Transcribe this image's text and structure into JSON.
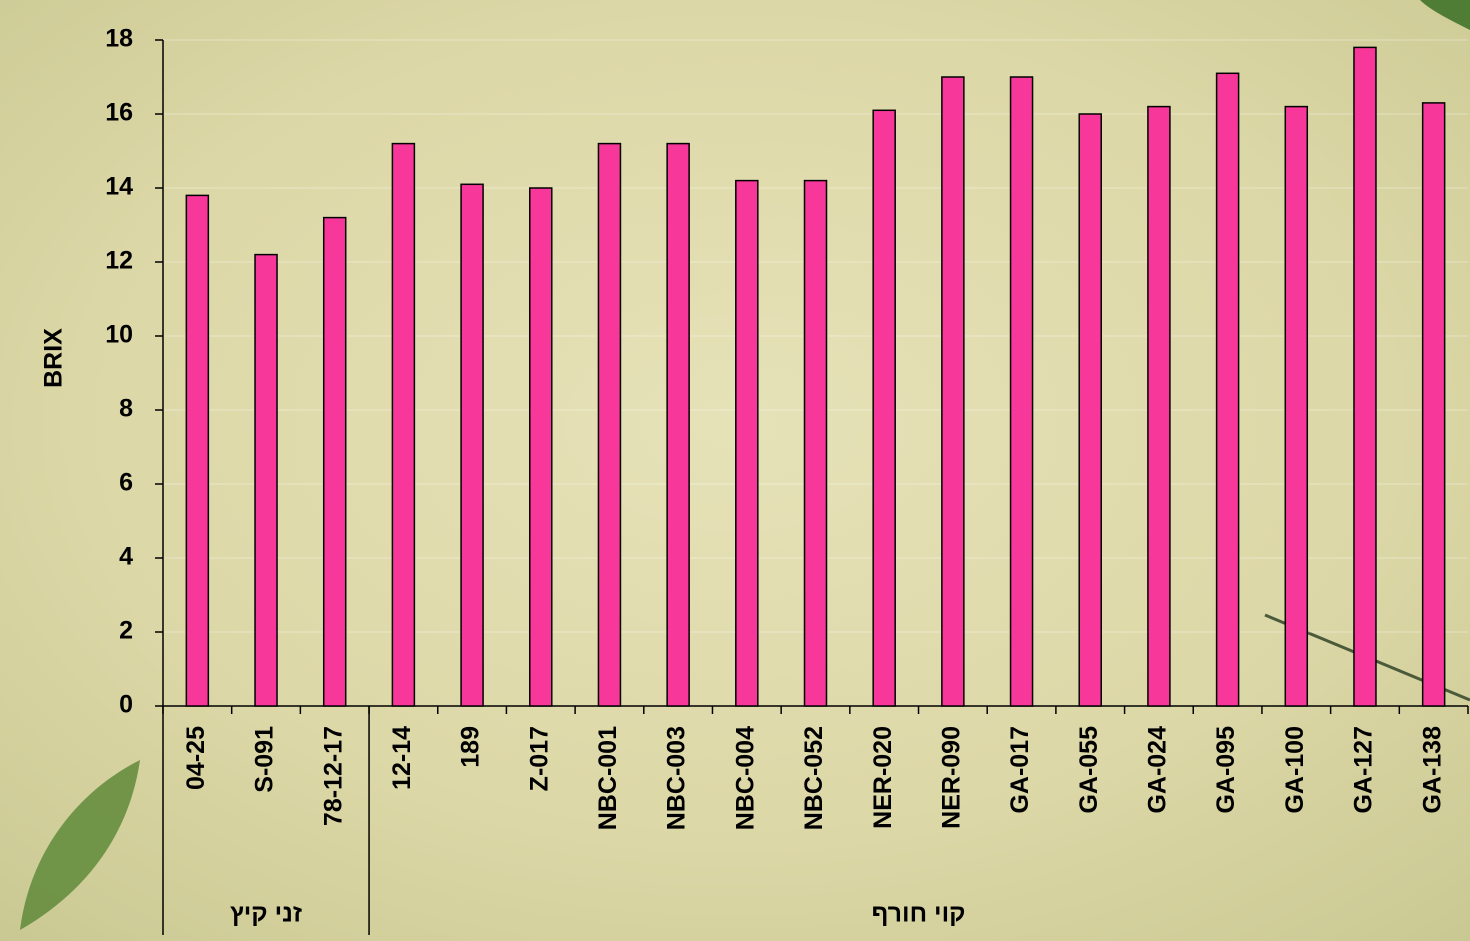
{
  "chart_data": {
    "type": "bar",
    "ylabel": "BRIX",
    "groups": [
      {
        "name": "זני קיץ",
        "categories": [
          "04-25",
          "S-091",
          "78-12-17"
        ]
      },
      {
        "name": "קוי חורף",
        "categories": [
          "12-14",
          "189",
          "Z-017",
          "NBC-001",
          "NBC-003",
          "NBC-004",
          "NBC-052",
          "NER-020",
          "NER-090",
          "GA-017",
          "GA-055",
          "GA-024",
          "GA-095",
          "GA-100",
          "GA-127",
          "GA-138"
        ]
      }
    ],
    "values": [
      13.8,
      12.2,
      13.2,
      15.2,
      14.1,
      14.0,
      15.2,
      15.2,
      14.2,
      14.2,
      16.1,
      17.0,
      17.0,
      16.0,
      16.2,
      17.1,
      16.2,
      17.8,
      16.3
    ],
    "color": "#f7389a",
    "ylim": [
      0,
      18
    ],
    "yticks": [
      0,
      2,
      4,
      6,
      8,
      10,
      12,
      14,
      16,
      18
    ],
    "grid": true
  }
}
